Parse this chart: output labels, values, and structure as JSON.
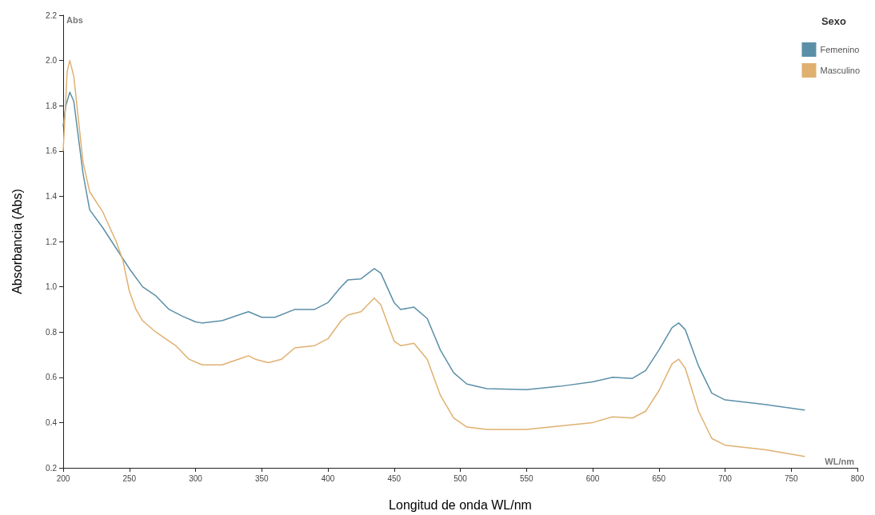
{
  "chart_data": {
    "type": "line",
    "xlabel": "Longitud de onda WL/nm",
    "ylabel": "Absorbancia (Abs)",
    "legend_title": "Sexo",
    "legend": "top right",
    "grid": false,
    "marker": "none",
    "line_style": "solid",
    "xlim": [
      200,
      800
    ],
    "xticks": [
      200,
      250,
      300,
      350,
      400,
      450,
      500,
      550,
      600,
      650,
      700,
      750,
      800
    ],
    "ylim": [
      0.2,
      2.2
    ],
    "yticks": [
      0.2,
      0.4,
      0.6,
      0.8,
      {
        "value": 1,
        "label": "1.0"
      },
      1.2,
      1.4,
      1.6,
      1.8,
      {
        "value": 2,
        "label": "2.0"
      },
      2.2
    ],
    "annotations": [
      "Abs",
      "WL/nm"
    ],
    "series": [
      {
        "name": "Femenino",
        "color": "#5b8fa8",
        "x": [
          200,
          202,
          205,
          208,
          215,
          220,
          230,
          240,
          250,
          260,
          270,
          280,
          290,
          300,
          305,
          320,
          335,
          340,
          350,
          360,
          375,
          390,
          400,
          410,
          415,
          425,
          435,
          440,
          450,
          455,
          465,
          475,
          485,
          495,
          505,
          520,
          550,
          575,
          600,
          615,
          630,
          640,
          650,
          660,
          665,
          670,
          680,
          690,
          700,
          730,
          760
        ],
        "values": [
          1.71,
          1.8,
          1.86,
          1.82,
          1.5,
          1.34,
          1.26,
          1.17,
          1.08,
          1.0,
          0.96,
          0.9,
          0.87,
          0.845,
          0.84,
          0.85,
          0.88,
          0.89,
          0.865,
          0.865,
          0.9,
          0.9,
          0.93,
          1.0,
          1.03,
          1.035,
          1.08,
          1.06,
          0.93,
          0.9,
          0.91,
          0.86,
          0.72,
          0.62,
          0.57,
          0.55,
          0.545,
          0.56,
          0.58,
          0.6,
          0.595,
          0.63,
          0.72,
          0.82,
          0.84,
          0.81,
          0.65,
          0.53,
          0.5,
          0.48,
          0.455
        ]
      },
      {
        "name": "Masculino",
        "color": "#e0b070",
        "x": [
          200,
          203,
          205,
          208,
          215,
          220,
          230,
          240,
          245,
          250,
          255,
          260,
          270,
          280,
          285,
          295,
          305,
          320,
          335,
          340,
          345,
          355,
          365,
          375,
          390,
          400,
          410,
          415,
          425,
          435,
          440,
          450,
          455,
          465,
          475,
          485,
          495,
          505,
          520,
          550,
          575,
          600,
          615,
          630,
          640,
          650,
          660,
          665,
          670,
          680,
          690,
          700,
          730,
          760
        ],
        "values": [
          1.6,
          1.95,
          2.0,
          1.93,
          1.55,
          1.42,
          1.33,
          1.2,
          1.12,
          0.98,
          0.9,
          0.85,
          0.8,
          0.76,
          0.74,
          0.68,
          0.655,
          0.655,
          0.685,
          0.695,
          0.68,
          0.665,
          0.68,
          0.73,
          0.74,
          0.77,
          0.85,
          0.875,
          0.89,
          0.95,
          0.92,
          0.76,
          0.74,
          0.75,
          0.68,
          0.52,
          0.42,
          0.38,
          0.37,
          0.37,
          0.385,
          0.4,
          0.425,
          0.42,
          0.45,
          0.54,
          0.66,
          0.68,
          0.64,
          0.45,
          0.33,
          0.3,
          0.28,
          0.25
        ]
      }
    ]
  }
}
